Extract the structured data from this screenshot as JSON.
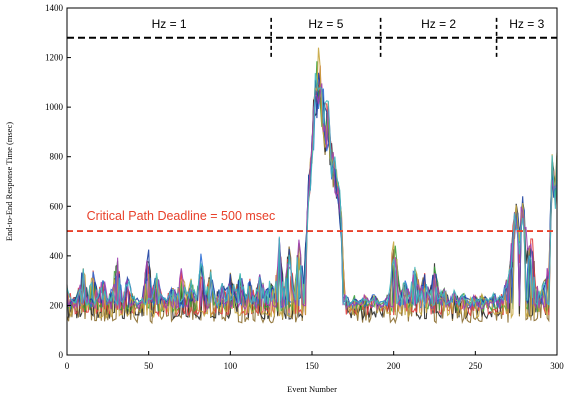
{
  "chart_data": {
    "type": "line",
    "title": "",
    "xlabel": "Event Number",
    "ylabel": "End-to-End Response Time (msec)",
    "xlim": [
      0,
      300
    ],
    "ylim": [
      0,
      1400
    ],
    "xticks": [
      0,
      50,
      100,
      150,
      200,
      250,
      300
    ],
    "yticks": [
      0,
      200,
      400,
      600,
      800,
      1000,
      1200,
      1400
    ],
    "grid": false,
    "legend": "none",
    "rate_segments": [
      {
        "label": "Hz = 1",
        "x_start": 0,
        "x_end": 125
      },
      {
        "label": "Hz = 5",
        "x_start": 125,
        "x_end": 192
      },
      {
        "label": "Hz = 2",
        "x_start": 192,
        "x_end": 263
      },
      {
        "label": "Hz = 3",
        "x_start": 263,
        "x_end": 300
      }
    ],
    "upper_reference_line": {
      "y": 1280,
      "color": "#000000",
      "style": "dashed"
    },
    "deadline": {
      "y": 500,
      "label": "Critical Path Deadline = 500 msec",
      "color": "#e8402a",
      "style": "dashed"
    },
    "series_colors": [
      "#8b6d2e",
      "#2a2a2a",
      "#e03c3c",
      "#3aa03a",
      "#2c6fd6",
      "#1b3fa0",
      "#c7a640",
      "#a040b0",
      "#40b8c0"
    ],
    "baselines": [
      130,
      145,
      160,
      175,
      190,
      205,
      150,
      185,
      200
    ],
    "baseline_profile": [
      [
        0,
        280
      ],
      [
        3,
        230
      ],
      [
        6,
        240
      ],
      [
        10,
        360
      ],
      [
        13,
        240
      ],
      [
        16,
        360
      ],
      [
        19,
        240
      ],
      [
        22,
        330
      ],
      [
        25,
        220
      ],
      [
        28,
        300
      ],
      [
        31,
        390
      ],
      [
        34,
        230
      ],
      [
        37,
        320
      ],
      [
        40,
        250
      ],
      [
        43,
        210
      ],
      [
        46,
        230
      ],
      [
        48,
        330
      ],
      [
        50,
        420
      ],
      [
        52,
        260
      ],
      [
        55,
        330
      ],
      [
        58,
        240
      ],
      [
        61,
        220
      ],
      [
        64,
        300
      ],
      [
        67,
        250
      ],
      [
        70,
        360
      ],
      [
        73,
        250
      ],
      [
        76,
        300
      ],
      [
        79,
        240
      ],
      [
        82,
        400
      ],
      [
        85,
        250
      ],
      [
        88,
        340
      ],
      [
        91,
        230
      ],
      [
        94,
        300
      ],
      [
        97,
        260
      ],
      [
        100,
        330
      ],
      [
        103,
        260
      ],
      [
        106,
        340
      ],
      [
        109,
        250
      ],
      [
        112,
        310
      ],
      [
        115,
        240
      ],
      [
        118,
        320
      ],
      [
        121,
        270
      ],
      [
        124,
        300
      ],
      [
        127,
        260
      ],
      [
        130,
        470
      ],
      [
        133,
        280
      ],
      [
        136,
        440
      ],
      [
        139,
        260
      ],
      [
        142,
        480
      ],
      [
        145,
        300
      ],
      [
        148,
        700
      ],
      [
        150,
        900
      ],
      [
        152,
        1100
      ],
      [
        154,
        1200
      ],
      [
        156,
        1100
      ],
      [
        158,
        980
      ],
      [
        160,
        1000
      ],
      [
        162,
        850
      ],
      [
        164,
        780
      ],
      [
        166,
        720
      ],
      [
        168,
        560
      ],
      [
        170,
        260
      ],
      [
        173,
        200
      ],
      [
        176,
        240
      ],
      [
        179,
        210
      ],
      [
        182,
        240
      ],
      [
        185,
        220
      ],
      [
        188,
        250
      ],
      [
        191,
        210
      ],
      [
        194,
        220
      ],
      [
        197,
        250
      ],
      [
        200,
        500
      ],
      [
        202,
        380
      ],
      [
        204,
        260
      ],
      [
        207,
        300
      ],
      [
        210,
        250
      ],
      [
        213,
        380
      ],
      [
        216,
        260
      ],
      [
        219,
        330
      ],
      [
        222,
        250
      ],
      [
        225,
        360
      ],
      [
        228,
        250
      ],
      [
        231,
        270
      ],
      [
        234,
        220
      ],
      [
        237,
        260
      ],
      [
        240,
        230
      ],
      [
        243,
        250
      ],
      [
        246,
        220
      ],
      [
        249,
        240
      ],
      [
        252,
        230
      ],
      [
        255,
        250
      ],
      [
        258,
        220
      ],
      [
        261,
        260
      ],
      [
        264,
        230
      ],
      [
        267,
        260
      ],
      [
        270,
        320
      ],
      [
        273,
        520
      ],
      [
        275,
        600
      ],
      [
        277,
        540
      ],
      [
        279,
        650
      ],
      [
        281,
        500
      ],
      [
        283,
        450
      ],
      [
        285,
        480
      ],
      [
        287,
        300
      ],
      [
        290,
        250
      ],
      [
        293,
        330
      ],
      [
        295,
        360
      ],
      [
        297,
        780
      ],
      [
        299,
        700
      ],
      [
        300,
        800
      ]
    ]
  }
}
